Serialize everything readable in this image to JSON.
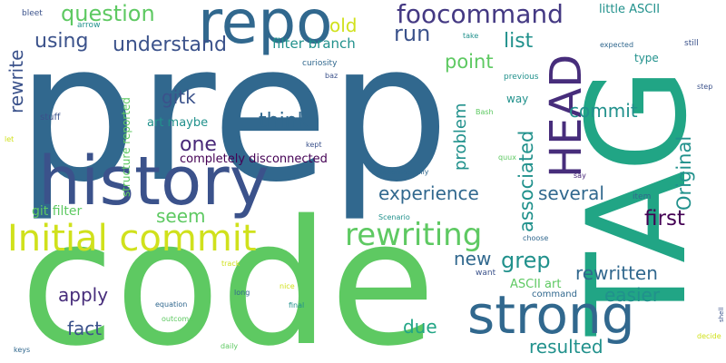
{
  "words": [
    {
      "text": "prep",
      "color": "#31688e"
    },
    {
      "text": "code",
      "color": "#5ec962"
    },
    {
      "text": "TAG",
      "color": "#21a585"
    },
    {
      "text": "history",
      "color": "#3b528b"
    },
    {
      "text": "repo",
      "color": "#31688e"
    },
    {
      "text": "strong",
      "color": "#31688e"
    },
    {
      "text": "Initial commit",
      "color": "#d0e11c"
    },
    {
      "text": "HEAD",
      "color": "#472d7b"
    },
    {
      "text": "foocommand",
      "color": "#443983"
    },
    {
      "text": "question",
      "color": "#5ec962"
    },
    {
      "text": "rewriting",
      "color": "#5ec962"
    },
    {
      "text": "using",
      "color": "#3b528b"
    },
    {
      "text": "understand",
      "color": "#3b528b"
    },
    {
      "text": "run",
      "color": "#3b528b"
    },
    {
      "text": "old",
      "color": "#d0e11c"
    },
    {
      "text": "list",
      "color": "#21918c"
    },
    {
      "text": "point",
      "color": "#5ec962"
    },
    {
      "text": "filter branch",
      "color": "#21918c"
    },
    {
      "text": "rewrite",
      "color": "#3b528b"
    },
    {
      "text": "gitk",
      "color": "#3b528b"
    },
    {
      "text": "think",
      "color": "#31688e"
    },
    {
      "text": "one",
      "color": "#482878"
    },
    {
      "text": "commit",
      "color": "#21918c"
    },
    {
      "text": "problem",
      "color": "#21918c"
    },
    {
      "text": "associated",
      "color": "#21918c"
    },
    {
      "text": "Original",
      "color": "#21918c"
    },
    {
      "text": "experience",
      "color": "#31688e"
    },
    {
      "text": "several",
      "color": "#31688e"
    },
    {
      "text": "first",
      "color": "#440154"
    },
    {
      "text": "seem",
      "color": "#5ec962"
    },
    {
      "text": "grep",
      "color": "#21918c"
    },
    {
      "text": "new",
      "color": "#31688e"
    },
    {
      "text": "apply",
      "color": "#472d7b"
    },
    {
      "text": "fact",
      "color": "#3b528b"
    },
    {
      "text": "due",
      "color": "#21a585"
    },
    {
      "text": "rewritten",
      "color": "#31688e"
    },
    {
      "text": "easier",
      "color": "#21918c"
    },
    {
      "text": "resulted",
      "color": "#21918c"
    },
    {
      "text": "completely disconnected",
      "color": "#440154"
    },
    {
      "text": "git filter",
      "color": "#5ec962"
    },
    {
      "text": "art maybe",
      "color": "#21918c"
    },
    {
      "text": "structure reported",
      "color": "#5ec962"
    },
    {
      "text": "ASCII art",
      "color": "#5ec962"
    },
    {
      "text": "little ASCII",
      "color": "#21918c"
    },
    {
      "text": "type",
      "color": "#21918c"
    },
    {
      "text": "way",
      "color": "#21918c"
    },
    {
      "text": "stuff",
      "color": "#3b528b"
    },
    {
      "text": "let",
      "color": "#d0e11c"
    },
    {
      "text": "bleet",
      "color": "#3b528b"
    },
    {
      "text": "arrow",
      "color": "#21918c"
    },
    {
      "text": "take",
      "color": "#21918c"
    },
    {
      "text": "curiosity",
      "color": "#31688e"
    },
    {
      "text": "baz",
      "color": "#3b528b"
    },
    {
      "text": "previous",
      "color": "#21918c"
    },
    {
      "text": "expected",
      "color": "#31688e"
    },
    {
      "text": "still",
      "color": "#3b528b"
    },
    {
      "text": "step",
      "color": "#3b528b"
    },
    {
      "text": "Bash",
      "color": "#5ec962"
    },
    {
      "text": "kept",
      "color": "#3b528b"
    },
    {
      "text": "quux",
      "color": "#5ec962"
    },
    {
      "text": "automatically",
      "color": "#31688e"
    },
    {
      "text": "say",
      "color": "#482878"
    },
    {
      "text": "item",
      "color": "#31688e"
    },
    {
      "text": "Scenario",
      "color": "#21918c"
    },
    {
      "text": "choose",
      "color": "#31688e"
    },
    {
      "text": "want",
      "color": "#3b528b"
    },
    {
      "text": "command",
      "color": "#31688e"
    },
    {
      "text": "track",
      "color": "#d0e11c"
    },
    {
      "text": "nice",
      "color": "#d0e11c"
    },
    {
      "text": "long",
      "color": "#31688e"
    },
    {
      "text": "final",
      "color": "#21918c"
    },
    {
      "text": "equation",
      "color": "#31688e"
    },
    {
      "text": "outcome",
      "color": "#5ec962"
    },
    {
      "text": "keys",
      "color": "#31688e"
    },
    {
      "text": "daily",
      "color": "#5ec962"
    },
    {
      "text": "shell",
      "color": "#3b528b"
    },
    {
      "text": "decide",
      "color": "#d0e11c"
    }
  ]
}
